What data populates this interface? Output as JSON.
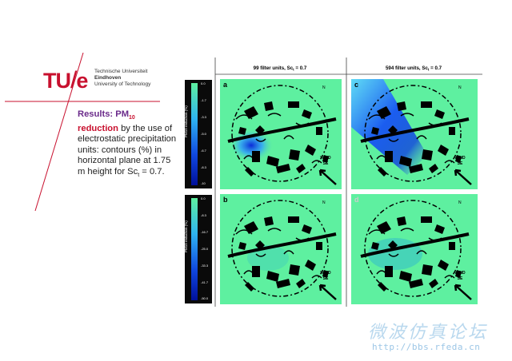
{
  "logo": {
    "mark_tu": "TU",
    "mark_e": "e",
    "line1": "Technische Universiteit",
    "line2": "Eindhoven",
    "line3": "University of Technology"
  },
  "text": {
    "results_label": "Results: PM",
    "results_sub": "10",
    "reduction_label": "reduction",
    "body": "by the use of electrostatic precipitation units: contours (%) in horizontal plane at 1.75 m height for Sc",
    "body_sub": "t",
    "body_end": " = 0.7."
  },
  "figure": {
    "col1_header": "99 filter units, Sc",
    "col2_header": "594 filter units, Sc",
    "header_sub": "t",
    "header_end": " = 0.7",
    "panel_labels": [
      "a",
      "c",
      "b",
      "d"
    ],
    "wind_label_1": "WIND",
    "wind_label_2": "SE",
    "north_label": "N",
    "scale_top": {
      "axis_label": "PM10 reduction (%)",
      "ticks": [
        "0.0",
        "-1.7",
        "-3.3",
        "-5.0",
        "-6.7",
        "-8.3",
        "-10"
      ]
    },
    "scale_bottom": {
      "axis_label": "PM10 reduction (%)",
      "ticks": [
        "0.0",
        "-8.3",
        "-16.7",
        "-25.0",
        "-33.3",
        "-41.7",
        "-50.0"
      ]
    }
  },
  "watermark": {
    "cn": "微波仿真论坛",
    "url": "http://bbs.rfeda.cn"
  },
  "colors": {
    "tue_red": "#c8102e",
    "map_green": "#5ef0a0",
    "reduction_blue": "#0a2ad8"
  }
}
